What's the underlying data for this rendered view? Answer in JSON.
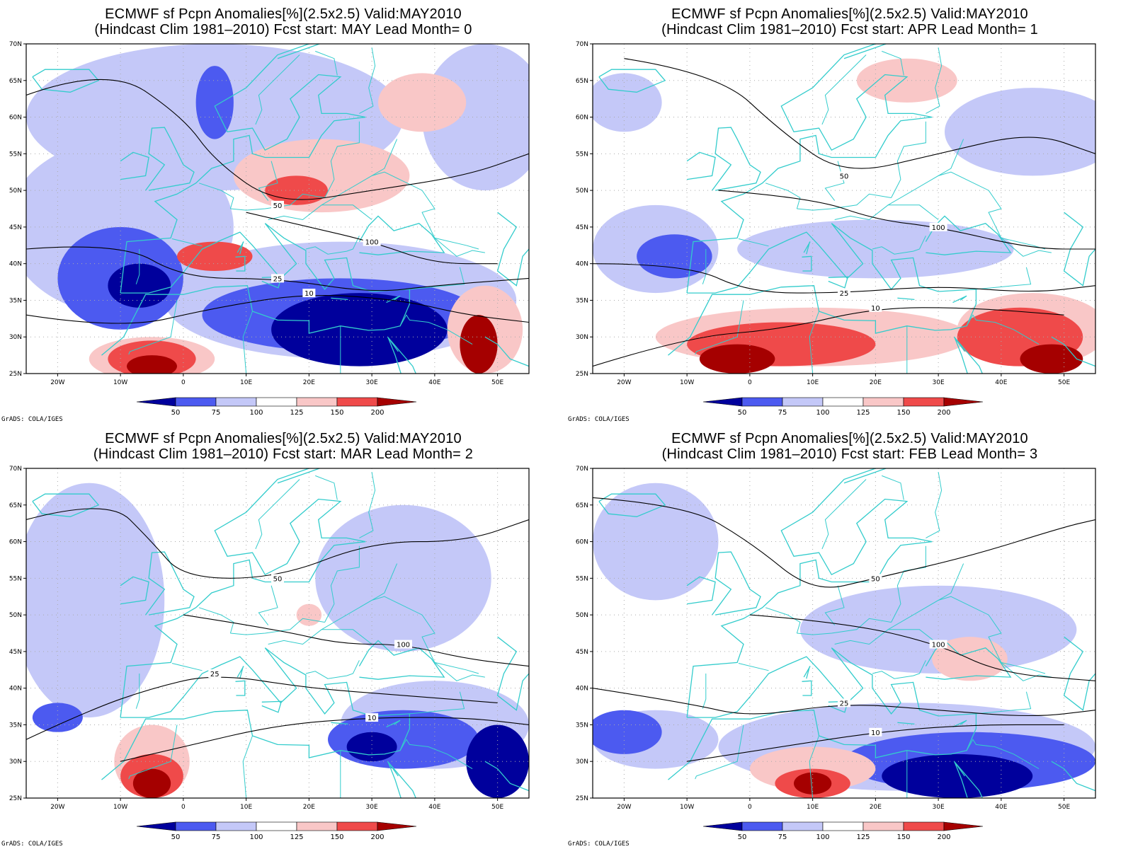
{
  "colors": {
    "c50": "#00009c",
    "c75": "#4c5af0",
    "c100": "#c4c8f8",
    "cwhite": "#ffffff",
    "c125": "#f9c7c7",
    "c150": "#ef4a4a",
    "c200": "#a50000",
    "coast": "#33cccc",
    "contour": "#000000",
    "grid": "#aaaaaa"
  },
  "axes": {
    "lat_ticks": [
      "70N",
      "65N",
      "60N",
      "55N",
      "50N",
      "45N",
      "40N",
      "35N",
      "30N",
      "25N"
    ],
    "lat_values": [
      70,
      65,
      60,
      55,
      50,
      45,
      40,
      35,
      30,
      25
    ],
    "lon_ticks": [
      "20W",
      "10W",
      "0",
      "10E",
      "20E",
      "30E",
      "40E",
      "50E"
    ],
    "lon_values": [
      -20,
      -10,
      0,
      10,
      20,
      30,
      40,
      50
    ],
    "lon_range": [
      -25,
      55
    ],
    "lat_range": [
      25,
      70
    ]
  },
  "legend": {
    "labels": [
      "50",
      "75",
      "100",
      "125",
      "150",
      "200"
    ]
  },
  "credit": "GrADS: COLA/IGES",
  "panels": [
    {
      "title1": "ECMWF sf Pcpn Anomalies[%](2.5x2.5) Valid:MAY2010",
      "title2": "(Hindcast Clim 1981–2010) Fcst start: MAY  Lead Month= 0",
      "blobs": [
        {
          "c": "c100",
          "lon": 5,
          "lat": 60,
          "rx": 30,
          "ry": 10
        },
        {
          "c": "c100",
          "lon": -10,
          "lat": 45,
          "rx": 18,
          "ry": 12
        },
        {
          "c": "c100",
          "lon": 25,
          "lat": 35,
          "rx": 28,
          "ry": 8
        },
        {
          "c": "c100",
          "lon": 48,
          "lat": 60,
          "rx": 10,
          "ry": 10
        },
        {
          "c": "c75",
          "lon": -10,
          "lat": 38,
          "rx": 10,
          "ry": 7
        },
        {
          "c": "c75",
          "lon": 25,
          "lat": 33,
          "rx": 22,
          "ry": 5
        },
        {
          "c": "c75",
          "lon": 5,
          "lat": 62,
          "rx": 3,
          "ry": 5
        },
        {
          "c": "c50",
          "lon": -7,
          "lat": 37,
          "rx": 5,
          "ry": 3
        },
        {
          "c": "c50",
          "lon": 28,
          "lat": 31,
          "rx": 14,
          "ry": 5
        },
        {
          "c": "c125",
          "lon": 22,
          "lat": 52,
          "rx": 14,
          "ry": 5
        },
        {
          "c": "c125",
          "lon": -5,
          "lat": 27,
          "rx": 10,
          "ry": 3
        },
        {
          "c": "c125",
          "lon": 38,
          "lat": 62,
          "rx": 7,
          "ry": 4
        },
        {
          "c": "c125",
          "lon": 48,
          "lat": 31,
          "rx": 6,
          "ry": 6
        },
        {
          "c": "c150",
          "lon": 18,
          "lat": 50,
          "rx": 5,
          "ry": 2
        },
        {
          "c": "c150",
          "lon": 5,
          "lat": 41,
          "rx": 6,
          "ry": 2
        },
        {
          "c": "c150",
          "lon": -5,
          "lat": 27,
          "rx": 7,
          "ry": 2.5
        },
        {
          "c": "c200",
          "lon": -5,
          "lat": 26,
          "rx": 4,
          "ry": 1.5
        },
        {
          "c": "c200",
          "lon": 47,
          "lat": 29,
          "rx": 3,
          "ry": 4
        }
      ],
      "contours": [
        {
          "lv": "50",
          "pts": [
            [
              -25,
              63
            ],
            [
              -12,
              67
            ],
            [
              0,
              60
            ],
            [
              5,
              54
            ],
            [
              15,
              48
            ],
            [
              30,
              50
            ],
            [
              45,
              52
            ],
            [
              55,
              55
            ]
          ]
        },
        {
          "lv": "25",
          "pts": [
            [
              -25,
              42
            ],
            [
              -10,
              43
            ],
            [
              0,
              38
            ],
            [
              15,
              38
            ],
            [
              30,
              36
            ],
            [
              40,
              37
            ],
            [
              55,
              38
            ]
          ]
        },
        {
          "lv": "10",
          "pts": [
            [
              -25,
              33
            ],
            [
              -10,
              31
            ],
            [
              5,
              34
            ],
            [
              20,
              36
            ],
            [
              35,
              35
            ],
            [
              45,
              33
            ],
            [
              55,
              32
            ]
          ]
        },
        {
          "lv": "100",
          "pts": [
            [
              10,
              47
            ],
            [
              20,
              45
            ],
            [
              30,
              43
            ],
            [
              40,
              40
            ],
            [
              50,
              40
            ]
          ]
        }
      ]
    },
    {
      "title1": "ECMWF sf Pcpn Anomalies[%](2.5x2.5) Valid:MAY2010",
      "title2": "(Hindcast Clim 1981–2010) Fcst start: APR  Lead Month= 1",
      "blobs": [
        {
          "c": "c100",
          "lon": -15,
          "lat": 42,
          "rx": 10,
          "ry": 6
        },
        {
          "c": "c100",
          "lon": 45,
          "lat": 58,
          "rx": 14,
          "ry": 6
        },
        {
          "c": "c100",
          "lon": 20,
          "lat": 42,
          "rx": 22,
          "ry": 4
        },
        {
          "c": "c100",
          "lon": -20,
          "lat": 62,
          "rx": 6,
          "ry": 4
        },
        {
          "c": "c75",
          "lon": -12,
          "lat": 41,
          "rx": 6,
          "ry": 3
        },
        {
          "c": "c125",
          "lon": 25,
          "lat": 65,
          "rx": 8,
          "ry": 3
        },
        {
          "c": "c125",
          "lon": 10,
          "lat": 30,
          "rx": 25,
          "ry": 4
        },
        {
          "c": "c125",
          "lon": 45,
          "lat": 31,
          "rx": 12,
          "ry": 5
        },
        {
          "c": "c150",
          "lon": 5,
          "lat": 29,
          "rx": 15,
          "ry": 3
        },
        {
          "c": "c150",
          "lon": 43,
          "lat": 30,
          "rx": 10,
          "ry": 4
        },
        {
          "c": "c200",
          "lon": -2,
          "lat": 27,
          "rx": 6,
          "ry": 2
        },
        {
          "c": "c200",
          "lon": 48,
          "lat": 27,
          "rx": 5,
          "ry": 2
        }
      ],
      "contours": [
        {
          "lv": "50",
          "pts": [
            [
              -20,
              68
            ],
            [
              -5,
              66
            ],
            [
              5,
              58
            ],
            [
              15,
              52
            ],
            [
              30,
              55
            ],
            [
              45,
              58
            ],
            [
              55,
              55
            ]
          ]
        },
        {
          "lv": "100",
          "pts": [
            [
              -5,
              50
            ],
            [
              10,
              49
            ],
            [
              20,
              46
            ],
            [
              30,
              45
            ],
            [
              45,
              42
            ],
            [
              55,
              42
            ]
          ]
        },
        {
          "lv": "25",
          "pts": [
            [
              -25,
              40
            ],
            [
              -10,
              40
            ],
            [
              0,
              36
            ],
            [
              15,
              36
            ],
            [
              30,
              37
            ],
            [
              45,
              36
            ],
            [
              55,
              37
            ]
          ]
        },
        {
          "lv": "10",
          "pts": [
            [
              -25,
              26
            ],
            [
              -10,
              30
            ],
            [
              5,
              31
            ],
            [
              20,
              34
            ],
            [
              35,
              34
            ],
            [
              50,
              33
            ]
          ]
        }
      ]
    },
    {
      "title1": "ECMWF sf Pcpn Anomalies[%](2.5x2.5) Valid:MAY2010",
      "title2": "(Hindcast Clim 1981–2010) Fcst start: MAR  Lead Month= 2",
      "blobs": [
        {
          "c": "c100",
          "lon": -15,
          "lat": 52,
          "rx": 12,
          "ry": 16
        },
        {
          "c": "c100",
          "lon": 35,
          "lat": 55,
          "rx": 14,
          "ry": 10
        },
        {
          "c": "c100",
          "lon": 40,
          "lat": 35,
          "rx": 15,
          "ry": 6
        },
        {
          "c": "c75",
          "lon": -20,
          "lat": 36,
          "rx": 4,
          "ry": 2
        },
        {
          "c": "c75",
          "lon": 35,
          "lat": 33,
          "rx": 12,
          "ry": 4
        },
        {
          "c": "c50",
          "lon": 30,
          "lat": 32,
          "rx": 4,
          "ry": 2
        },
        {
          "c": "c50",
          "lon": 50,
          "lat": 30,
          "rx": 5,
          "ry": 5
        },
        {
          "c": "c125",
          "lon": -5,
          "lat": 30,
          "rx": 6,
          "ry": 5
        },
        {
          "c": "c125",
          "lon": 20,
          "lat": 50,
          "rx": 2,
          "ry": 1.5
        },
        {
          "c": "c150",
          "lon": -5,
          "lat": 28,
          "rx": 5,
          "ry": 3
        },
        {
          "c": "c200",
          "lon": -5,
          "lat": 27,
          "rx": 3,
          "ry": 2
        }
      ],
      "contours": [
        {
          "lv": "50",
          "pts": [
            [
              -25,
              63
            ],
            [
              -12,
              66
            ],
            [
              -5,
              60
            ],
            [
              0,
              55
            ],
            [
              15,
              55
            ],
            [
              30,
              60
            ],
            [
              45,
              60
            ],
            [
              55,
              63
            ]
          ]
        },
        {
          "lv": "100",
          "pts": [
            [
              0,
              50
            ],
            [
              15,
              48
            ],
            [
              25,
              46
            ],
            [
              35,
              46
            ],
            [
              45,
              44
            ],
            [
              55,
              43
            ]
          ]
        },
        {
          "lv": "25",
          "pts": [
            [
              -25,
              33
            ],
            [
              -15,
              37
            ],
            [
              -5,
              40
            ],
            [
              5,
              42
            ],
            [
              20,
              40
            ],
            [
              35,
              39
            ],
            [
              50,
              38
            ]
          ]
        },
        {
          "lv": "10",
          "pts": [
            [
              -10,
              30
            ],
            [
              0,
              32
            ],
            [
              15,
              35
            ],
            [
              30,
              36
            ],
            [
              45,
              36
            ],
            [
              55,
              35
            ]
          ]
        }
      ]
    },
    {
      "title1": "ECMWF sf Pcpn Anomalies[%](2.5x2.5) Valid:MAY2010",
      "title2": "(Hindcast Clim 1981–2010) Fcst start: FEB  Lead Month= 3",
      "blobs": [
        {
          "c": "c100",
          "lon": -15,
          "lat": 60,
          "rx": 10,
          "ry": 8
        },
        {
          "c": "c100",
          "lon": 30,
          "lat": 48,
          "rx": 22,
          "ry": 6
        },
        {
          "c": "c100",
          "lon": 25,
          "lat": 32,
          "rx": 30,
          "ry": 6
        },
        {
          "c": "c100",
          "lon": -15,
          "lat": 33,
          "rx": 10,
          "ry": 4
        },
        {
          "c": "c75",
          "lon": -20,
          "lat": 34,
          "rx": 6,
          "ry": 3
        },
        {
          "c": "c75",
          "lon": 35,
          "lat": 30,
          "rx": 20,
          "ry": 4
        },
        {
          "c": "c50",
          "lon": 33,
          "lat": 28,
          "rx": 12,
          "ry": 3
        },
        {
          "c": "c125",
          "lon": 10,
          "lat": 29,
          "rx": 10,
          "ry": 3
        },
        {
          "c": "c125",
          "lon": 35,
          "lat": 44,
          "rx": 6,
          "ry": 3
        },
        {
          "c": "c150",
          "lon": 10,
          "lat": 27,
          "rx": 6,
          "ry": 2
        },
        {
          "c": "c200",
          "lon": 10,
          "lat": 27,
          "rx": 3,
          "ry": 1.5
        }
      ],
      "contours": [
        {
          "lv": "50",
          "pts": [
            [
              -25,
              66
            ],
            [
              -10,
              65
            ],
            [
              0,
              60
            ],
            [
              10,
              53
            ],
            [
              20,
              55
            ],
            [
              35,
              58
            ],
            [
              50,
              62
            ],
            [
              55,
              63
            ]
          ]
        },
        {
          "lv": "100",
          "pts": [
            [
              0,
              50
            ],
            [
              15,
              49
            ],
            [
              30,
              46
            ],
            [
              40,
              42
            ],
            [
              55,
              41
            ]
          ]
        },
        {
          "lv": "25",
          "pts": [
            [
              -25,
              40
            ],
            [
              -10,
              38
            ],
            [
              0,
              36
            ],
            [
              15,
              38
            ],
            [
              30,
              37
            ],
            [
              45,
              36
            ],
            [
              55,
              37
            ]
          ]
        },
        {
          "lv": "10",
          "pts": [
            [
              -10,
              30
            ],
            [
              5,
              32
            ],
            [
              20,
              34
            ],
            [
              35,
              35
            ],
            [
              50,
              35
            ]
          ]
        }
      ]
    }
  ]
}
